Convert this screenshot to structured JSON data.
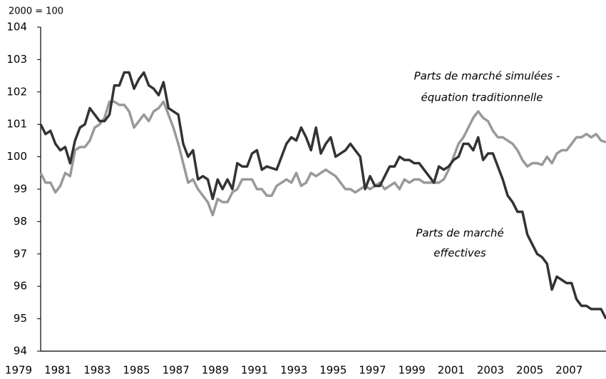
{
  "chart_data": {
    "type": "line",
    "y_unit_label": "2000 = 100",
    "categories": [
      "1979",
      null,
      null,
      null,
      null,
      null,
      null,
      null,
      "1981",
      null,
      null,
      null,
      null,
      null,
      null,
      null,
      "1983",
      null,
      null,
      null,
      null,
      null,
      null,
      null,
      "1985",
      null,
      null,
      null,
      null,
      null,
      null,
      null,
      "1987",
      null,
      null,
      null,
      null,
      null,
      null,
      null,
      "1989",
      null,
      null,
      null,
      null,
      null,
      null,
      null,
      "1991",
      null,
      null,
      null,
      null,
      null,
      null,
      null,
      "1993",
      null,
      null,
      null,
      null,
      null,
      null,
      null,
      "1995",
      null,
      null,
      null,
      null,
      null,
      null,
      null,
      "1997",
      null,
      null,
      null,
      null,
      null,
      null,
      null,
      "1999",
      null,
      null,
      null,
      null,
      null,
      null,
      null,
      "2001",
      null,
      null,
      null,
      null,
      null,
      null,
      null,
      "2003",
      null,
      null,
      null,
      null,
      null,
      null,
      null,
      "2005",
      null,
      null,
      null,
      null,
      null,
      null,
      null,
      "2007",
      null,
      null,
      null
    ],
    "series": [
      {
        "color": "#999999",
        "values": [
          99.5,
          99.2,
          99.2,
          98.9,
          99.1,
          99.5,
          99.4,
          100.2,
          100.3,
          100.3,
          100.5,
          100.9,
          101.0,
          101.2,
          101.7,
          101.7,
          101.6,
          101.6,
          101.4,
          100.9,
          101.1,
          101.3,
          101.1,
          101.4,
          101.5,
          101.7,
          101.3,
          100.9,
          100.4,
          99.8,
          99.2,
          99.3,
          99.0,
          98.8,
          98.6,
          98.2,
          98.7,
          98.6,
          98.6,
          98.9,
          99.0,
          99.3,
          99.3,
          99.3,
          99.0,
          99.0,
          98.8,
          98.8,
          99.1,
          99.2,
          99.3,
          99.2,
          99.5,
          99.1,
          99.2,
          99.5,
          99.4,
          99.5,
          99.6,
          99.5,
          99.4,
          99.2,
          99.0,
          99.0,
          98.9,
          99.0,
          99.1,
          99.0,
          99.1,
          99.2,
          99.0,
          99.1,
          99.2,
          99.0,
          99.3,
          99.2,
          99.3,
          99.3,
          99.2,
          99.2,
          99.2,
          99.2,
          99.3,
          99.6,
          100.0,
          100.4,
          100.6,
          100.9,
          101.2,
          101.4,
          101.2,
          101.1,
          100.8,
          100.6,
          100.6,
          100.5,
          100.4,
          100.2,
          99.9,
          99.7,
          99.8,
          99.8,
          99.75,
          100.0,
          99.8,
          100.1,
          100.2,
          100.2,
          100.4,
          100.6,
          100.6,
          100.7,
          100.6,
          100.7,
          100.5,
          100.45
        ]
      },
      {
        "color": "#333333",
        "values": [
          101.0,
          100.7,
          100.8,
          100.4,
          100.2,
          100.3,
          99.8,
          100.5,
          100.9,
          101.0,
          101.5,
          101.3,
          101.1,
          101.1,
          101.3,
          102.2,
          102.2,
          102.6,
          102.6,
          102.1,
          102.4,
          102.6,
          102.2,
          102.1,
          101.9,
          102.3,
          101.5,
          101.4,
          101.3,
          100.4,
          100.0,
          100.2,
          99.3,
          99.4,
          99.3,
          98.7,
          99.3,
          99.0,
          99.3,
          99.0,
          99.8,
          99.7,
          99.7,
          100.1,
          100.2,
          99.6,
          99.7,
          99.65,
          99.6,
          100.0,
          100.4,
          100.6,
          100.5,
          100.9,
          100.6,
          100.2,
          100.9,
          100.1,
          100.4,
          100.6,
          100.0,
          100.1,
          100.2,
          100.4,
          100.2,
          100.0,
          99.0,
          99.4,
          99.1,
          99.1,
          99.4,
          99.7,
          99.7,
          100.0,
          99.9,
          99.9,
          99.8,
          99.8,
          99.6,
          99.4,
          99.2,
          99.7,
          99.6,
          99.7,
          99.9,
          100.0,
          100.4,
          100.4,
          100.2,
          100.6,
          99.9,
          100.1,
          100.1,
          99.7,
          99.3,
          98.8,
          98.6,
          98.3,
          98.3,
          97.6,
          97.3,
          97.0,
          96.9,
          96.7,
          95.9,
          96.3,
          96.2,
          96.1,
          96.1,
          95.6,
          95.4,
          95.4,
          95.3,
          95.3,
          95.3,
          95.0
        ]
      }
    ],
    "annotations": [
      "Parts de marché simulées -",
      "équation traditionnelle",
      "Parts de marché",
      "effectives"
    ],
    "ylim": [
      94,
      104
    ],
    "yticks": [
      94,
      95,
      96,
      97,
      98,
      99,
      100,
      101,
      102,
      103,
      104
    ]
  }
}
